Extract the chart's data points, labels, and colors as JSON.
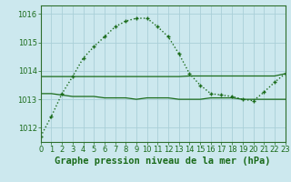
{
  "title": "Graphe pression niveau de la mer (hPa)",
  "background_color": "#cce8ee",
  "grid_color": "#aacfd8",
  "line_color": "#1a6b1a",
  "border_color": "#2d6e2d",
  "x_labels": [
    "0",
    "1",
    "2",
    "3",
    "4",
    "5",
    "6",
    "7",
    "8",
    "9",
    "10",
    "11",
    "12",
    "13",
    "14",
    "15",
    "16",
    "17",
    "18",
    "19",
    "20",
    "21",
    "22",
    "23"
  ],
  "xlim": [
    0,
    23
  ],
  "ylim": [
    1011.5,
    1016.3
  ],
  "yticks": [
    1012,
    1013,
    1014,
    1015,
    1016
  ],
  "curve1": [
    1011.7,
    1012.4,
    1013.2,
    1013.8,
    1014.45,
    1014.85,
    1015.2,
    1015.55,
    1015.75,
    1015.85,
    1015.85,
    1015.55,
    1015.2,
    1014.6,
    1013.9,
    1013.5,
    1013.2,
    1013.15,
    1013.1,
    1013.0,
    1012.95,
    1013.25,
    1013.6,
    1013.9
  ],
  "curve2": [
    1013.8,
    1013.8,
    1013.8,
    1013.8,
    1013.8,
    1013.8,
    1013.8,
    1013.8,
    1013.8,
    1013.8,
    1013.8,
    1013.8,
    1013.8,
    1013.8,
    1013.82,
    1013.82,
    1013.82,
    1013.82,
    1013.82,
    1013.82,
    1013.82,
    1013.82,
    1013.82,
    1013.9
  ],
  "curve3": [
    1013.2,
    1013.2,
    1013.15,
    1013.1,
    1013.1,
    1013.1,
    1013.05,
    1013.05,
    1013.05,
    1013.0,
    1013.05,
    1013.05,
    1013.05,
    1013.0,
    1013.0,
    1013.0,
    1013.05,
    1013.05,
    1013.05,
    1013.0,
    1013.0,
    1013.0,
    1013.0,
    1013.0
  ],
  "title_fontsize": 7.5,
  "tick_fontsize": 6,
  "title_color": "#1a6b1a",
  "tick_color": "#1a6b1a"
}
